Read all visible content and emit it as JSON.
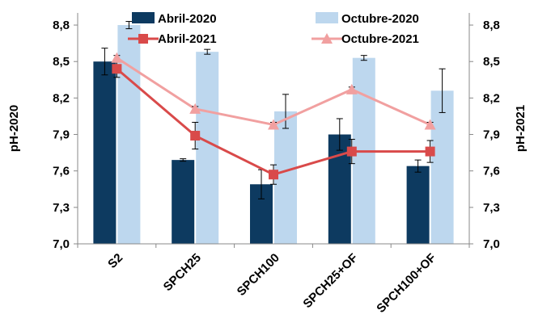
{
  "chart_data": {
    "type": "bar",
    "categories": [
      "S2",
      "SPCH25",
      "SPCH100",
      "SPCH25+OF",
      "SPCH100+OF"
    ],
    "bar_series": [
      {
        "name": "Abril-2020",
        "color": "#0d3a60",
        "values": [
          8.5,
          7.69,
          7.49,
          7.9,
          7.64
        ],
        "errors": [
          0.11,
          0.01,
          0.12,
          0.13,
          0.05
        ]
      },
      {
        "name": "Octubre-2020",
        "color": "#bdd7ee",
        "values": [
          8.8,
          8.58,
          8.09,
          8.53,
          8.26
        ],
        "errors": [
          0.03,
          0.02,
          0.14,
          0.02,
          0.18
        ]
      }
    ],
    "line_series": [
      {
        "name": "Abril-2021",
        "color": "#d94a4a",
        "marker": "square",
        "values": [
          8.44,
          7.89,
          7.57,
          7.76,
          7.76
        ],
        "errors": [
          0.07,
          0.11,
          0.08,
          0.1,
          0.09
        ]
      },
      {
        "name": "Octubre-2021",
        "color": "#f1a0a0",
        "marker": "triangle",
        "values": [
          8.53,
          8.11,
          7.98,
          8.27,
          7.98
        ],
        "errors": [
          0.02,
          0.02,
          0.02,
          0.02,
          0.02
        ]
      }
    ],
    "ylabel_left": "pH-2020",
    "ylabel_right": "pH-2021",
    "ylim": [
      7.0,
      8.9
    ],
    "yticks": [
      "7,0",
      "7,3",
      "7,6",
      "7,9",
      "8,2",
      "8,5",
      "8,8"
    ],
    "ytick_values": [
      7.0,
      7.3,
      7.6,
      7.9,
      8.2,
      8.5,
      8.8
    ],
    "grid": false,
    "legend_position": "top"
  }
}
